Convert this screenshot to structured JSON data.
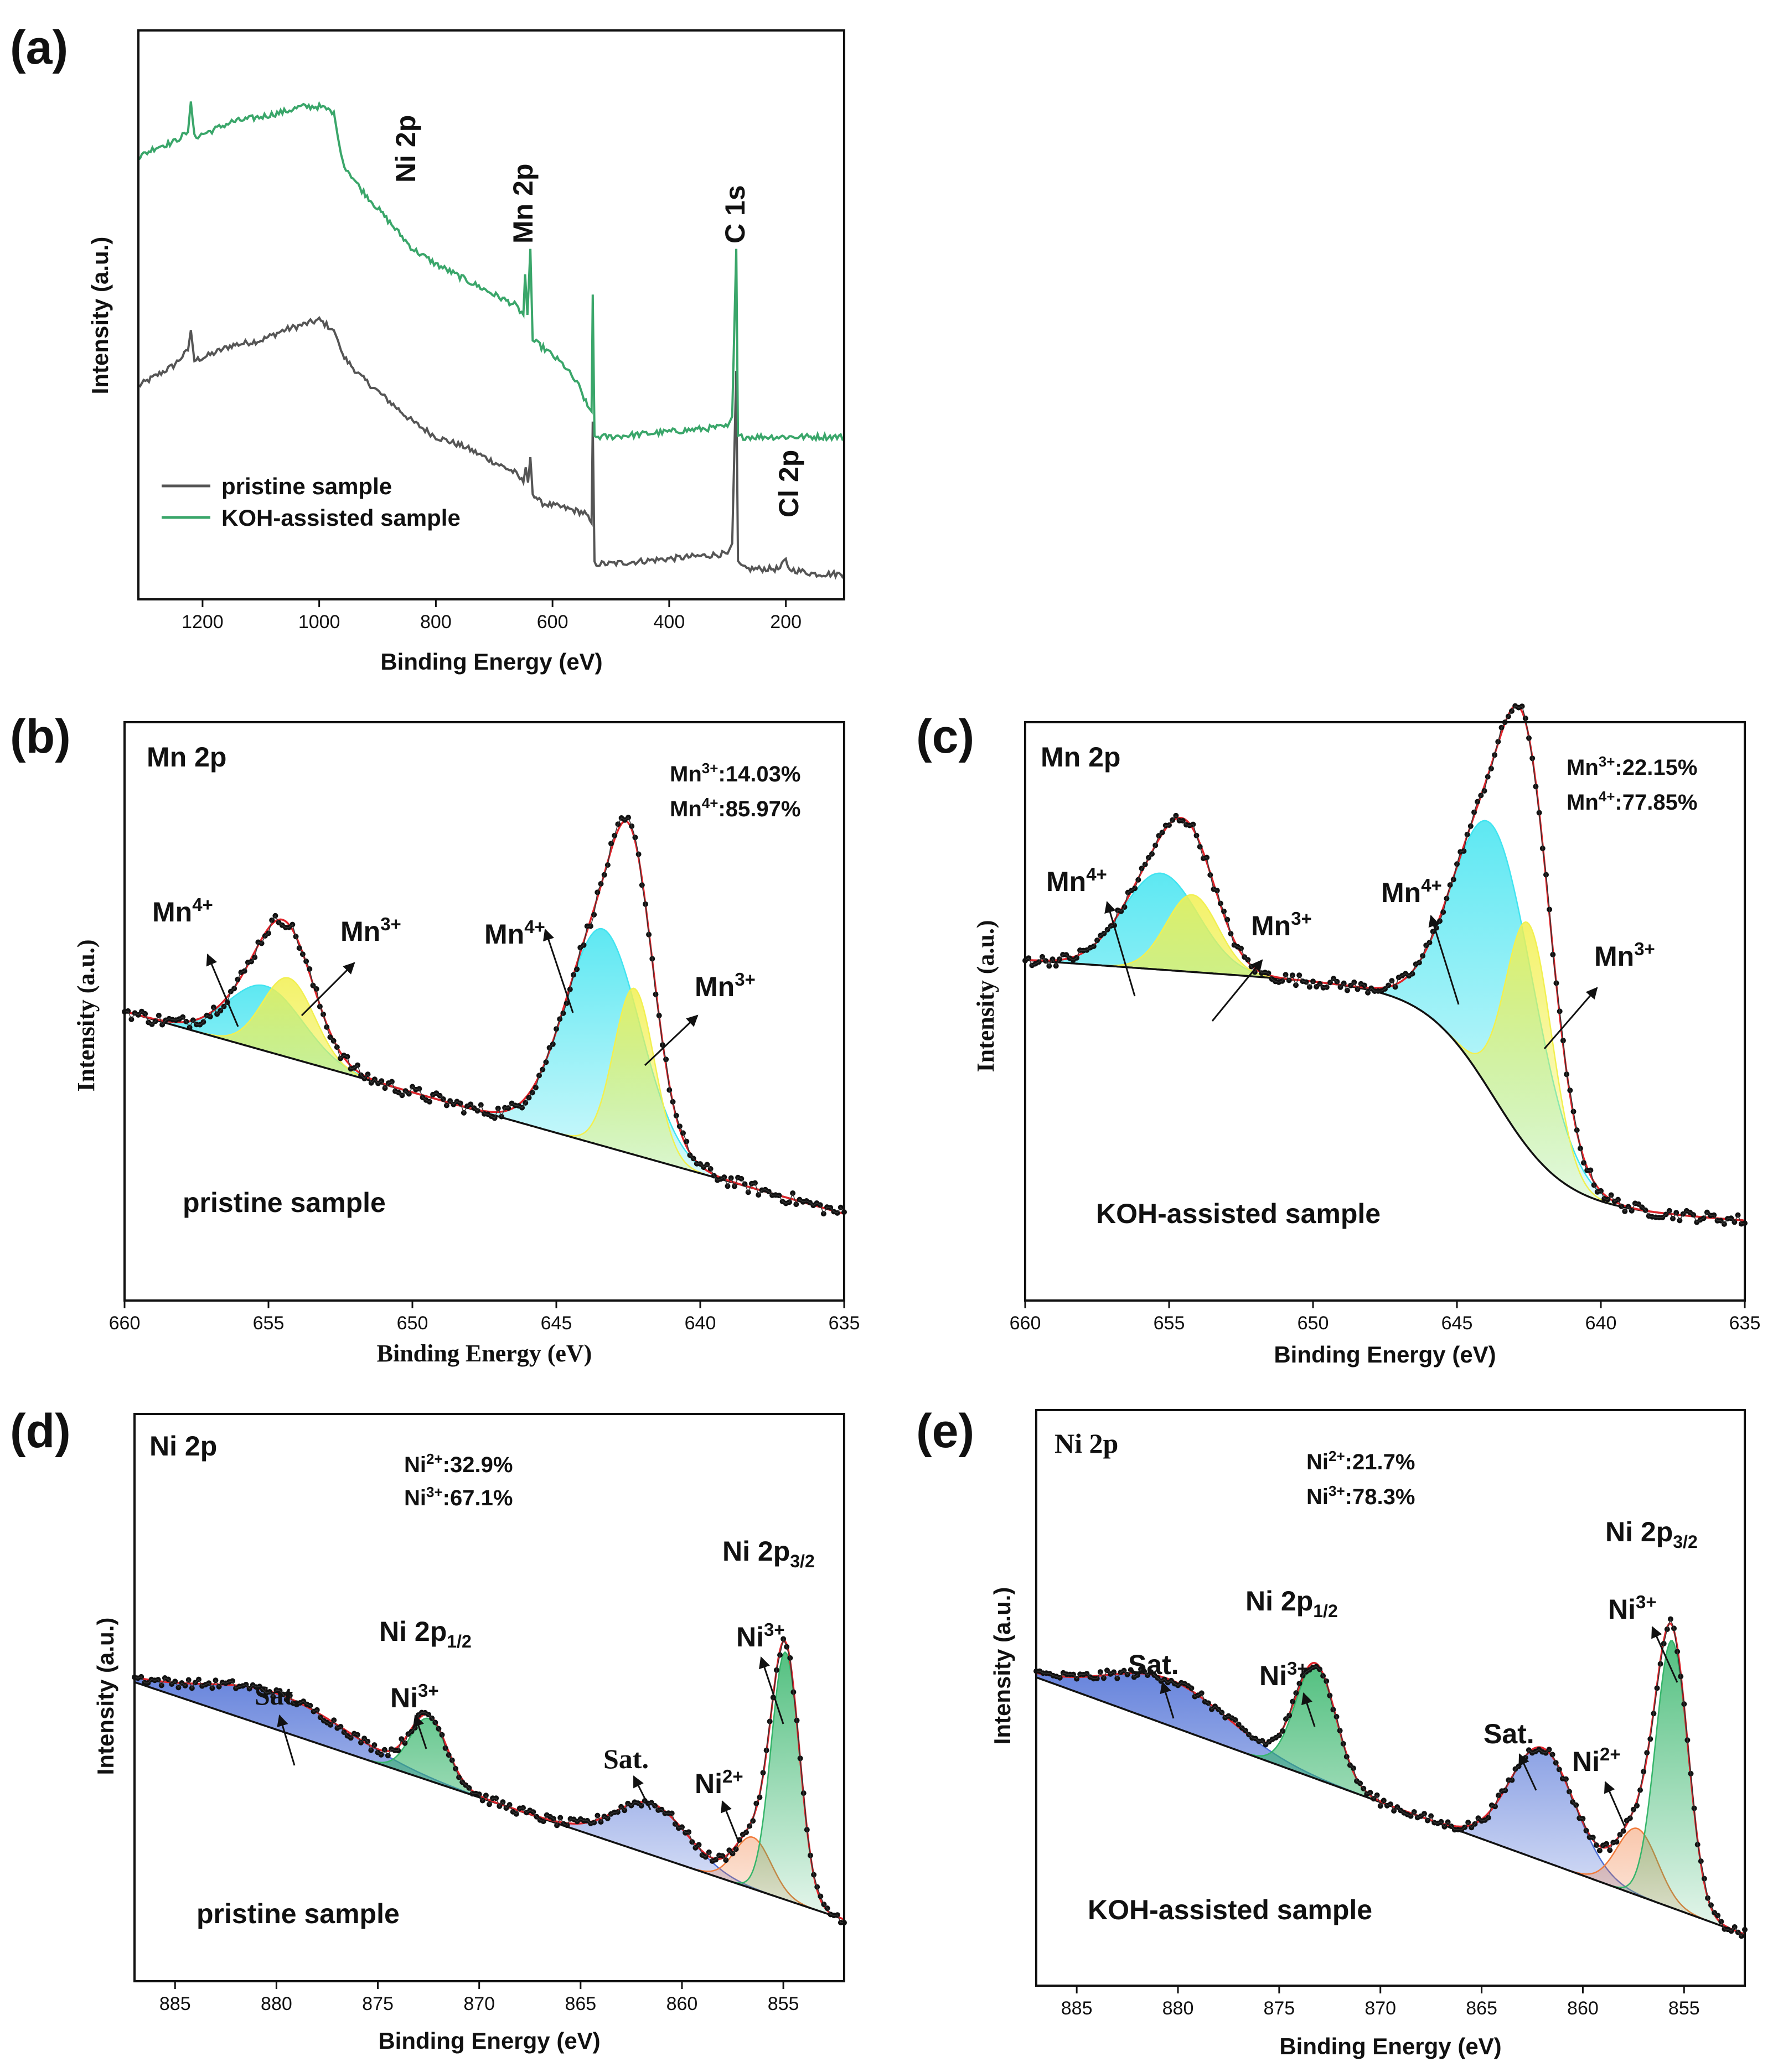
{
  "chart_data": [
    {
      "id": "a",
      "type": "line",
      "panel_label": "(a)",
      "xlabel": "Binding Energy (eV)",
      "ylabel": "Intensity (a.u.)",
      "xlim": [
        1310,
        100
      ],
      "xticks": [
        1200,
        1000,
        800,
        600,
        400,
        200
      ],
      "legend": {
        "placement": "bottom-left",
        "entries": [
          "pristine sample",
          "KOH-assisted sample"
        ]
      },
      "colors": {
        "pristine": "#555555",
        "koh": "#3aa66a"
      },
      "peak_labels": [
        "Ni 2p",
        "Mn 2p",
        "C 1s",
        "Cl 2p"
      ],
      "series": [
        {
          "name": "pristine sample",
          "points": [
            [
              1310,
              0.3
            ],
            [
              1280,
              0.32
            ],
            [
              1250,
              0.34
            ],
            [
              1225,
              0.37
            ],
            [
              1220,
              0.41
            ],
            [
              1214,
              0.35
            ],
            [
              1190,
              0.36
            ],
            [
              1150,
              0.38
            ],
            [
              1100,
              0.39
            ],
            [
              1060,
              0.41
            ],
            [
              1030,
              0.42
            ],
            [
              1000,
              0.43
            ],
            [
              975,
              0.41
            ],
            [
              968,
              0.39
            ],
            [
              960,
              0.36
            ],
            [
              930,
              0.32
            ],
            [
              900,
              0.29
            ],
            [
              870,
              0.26
            ],
            [
              840,
              0.23
            ],
            [
              800,
              0.2
            ],
            [
              750,
              0.18
            ],
            [
              700,
              0.15
            ],
            [
              665,
              0.13
            ],
            [
              650,
              0.11
            ],
            [
              646,
              0.14
            ],
            [
              642,
              0.11
            ],
            [
              638,
              0.16
            ],
            [
              634,
              0.09
            ],
            [
              620,
              0.07
            ],
            [
              580,
              0.06
            ],
            [
              545,
              0.05
            ],
            [
              533,
              0.03
            ],
            [
              531,
              0.23
            ],
            [
              528,
              -0.05
            ],
            [
              500,
              -0.05
            ],
            [
              400,
              -0.04
            ],
            [
              300,
              -0.03
            ],
            [
              292,
              -0.01
            ],
            [
              285,
              0.33
            ],
            [
              282,
              -0.05
            ],
            [
              270,
              -0.06
            ],
            [
              210,
              -0.06
            ],
            [
              200,
              -0.04
            ],
            [
              196,
              -0.06
            ],
            [
              150,
              -0.07
            ],
            [
              100,
              -0.07
            ]
          ]
        },
        {
          "name": "KOH-assisted sample",
          "points": [
            [
              1310,
              0.75
            ],
            [
              1280,
              0.77
            ],
            [
              1250,
              0.78
            ],
            [
              1225,
              0.8
            ],
            [
              1220,
              0.86
            ],
            [
              1214,
              0.79
            ],
            [
              1190,
              0.8
            ],
            [
              1150,
              0.82
            ],
            [
              1100,
              0.83
            ],
            [
              1060,
              0.84
            ],
            [
              1030,
              0.85
            ],
            [
              1000,
              0.85
            ],
            [
              975,
              0.84
            ],
            [
              968,
              0.79
            ],
            [
              960,
              0.74
            ],
            [
              930,
              0.69
            ],
            [
              900,
              0.65
            ],
            [
              870,
              0.61
            ],
            [
              840,
              0.57
            ],
            [
              800,
              0.54
            ],
            [
              750,
              0.51
            ],
            [
              700,
              0.48
            ],
            [
              665,
              0.46
            ],
            [
              650,
              0.44
            ],
            [
              647,
              0.52
            ],
            [
              643,
              0.44
            ],
            [
              638,
              0.57
            ],
            [
              634,
              0.39
            ],
            [
              610,
              0.37
            ],
            [
              580,
              0.34
            ],
            [
              555,
              0.3
            ],
            [
              540,
              0.26
            ],
            [
              533,
              0.25
            ],
            [
              531,
              0.48
            ],
            [
              528,
              0.2
            ],
            [
              500,
              0.2
            ],
            [
              400,
              0.21
            ],
            [
              300,
              0.22
            ],
            [
              292,
              0.24
            ],
            [
              285,
              0.57
            ],
            [
              282,
              0.2
            ],
            [
              270,
              0.2
            ],
            [
              200,
              0.2
            ],
            [
              100,
              0.2
            ]
          ]
        }
      ]
    },
    {
      "id": "b",
      "type": "line",
      "panel_label": "(b)",
      "title": "Mn 2p",
      "xlabel": "Binding Energy (eV)",
      "ylabel": "Intensity (a.u.)",
      "xlim": [
        660,
        635
      ],
      "xticks": [
        660,
        655,
        650,
        645,
        640,
        635
      ],
      "sample": "pristine sample",
      "annotation_lines": [
        "Mn³⁺:14.03%",
        "Mn⁴⁺:85.97%"
      ],
      "peak_labels": [
        "Mn⁴⁺",
        "Mn³⁺",
        "Mn⁴⁺",
        "Mn³⁺"
      ],
      "background": {
        "type": "linear",
        "start": 0.4,
        "end": 0.12
      },
      "components": [
        {
          "name": "Mn⁴⁺",
          "center": 655.1,
          "amp": 0.09,
          "sigma": 1.3,
          "color": "#41e4f0"
        },
        {
          "name": "Mn³⁺",
          "center": 654.3,
          "amp": 0.11,
          "sigma": 0.9,
          "color": "#f2f050"
        },
        {
          "name": "Mn⁴⁺",
          "center": 643.4,
          "amp": 0.3,
          "sigma": 1.3,
          "color": "#41e4f0"
        },
        {
          "name": "Mn³⁺",
          "center": 642.3,
          "amp": 0.23,
          "sigma": 0.7,
          "color": "#f2f050"
        }
      ]
    },
    {
      "id": "c",
      "type": "line",
      "panel_label": "(c)",
      "title": "Mn 2p",
      "xlabel": "Binding Energy (eV)",
      "ylabel": "Intensity (a.u.)",
      "xlim": [
        660,
        635
      ],
      "xticks": [
        660,
        655,
        650,
        645,
        640,
        635
      ],
      "sample": "KOH-assisted sample",
      "annotation_lines": [
        "Mn³⁺:22.15%",
        "Mn⁴⁺:77.85%"
      ],
      "peak_labels": [
        "Mn⁴⁺",
        "Mn³⁺",
        "Mn⁴⁺",
        "Mn³⁺"
      ],
      "background": {
        "type": "shirley",
        "start": 0.53,
        "end": 0.1
      },
      "components": [
        {
          "name": "Mn⁴⁺",
          "center": 655.3,
          "amp": 0.15,
          "sigma": 1.3,
          "color": "#41e4f0"
        },
        {
          "name": "Mn³⁺",
          "center": 654.2,
          "amp": 0.12,
          "sigma": 0.9,
          "color": "#f2f050"
        },
        {
          "name": "Mn⁴⁺",
          "center": 643.7,
          "amp": 0.42,
          "sigma": 1.4,
          "color": "#41e4f0"
        },
        {
          "name": "Mn³⁺",
          "center": 642.5,
          "amp": 0.35,
          "sigma": 0.8,
          "color": "#f2f050"
        }
      ]
    },
    {
      "id": "d",
      "type": "line",
      "panel_label": "(d)",
      "title": "Ni 2p",
      "xlabel": "Binding Energy (eV)",
      "ylabel": "Intensity (a.u.)",
      "xlim": [
        887,
        852
      ],
      "xticks": [
        885,
        880,
        875,
        870,
        865,
        860,
        855
      ],
      "sample": "pristine sample",
      "annotation_lines": [
        "Ni²⁺:32.9%",
        "Ni³⁺:67.1%"
      ],
      "region_labels": [
        "Ni 2p1/2",
        "Ni 2p3/2"
      ],
      "peak_labels": [
        "Sat.",
        "Ni³⁺",
        "Sat.",
        "Ni²⁺",
        "Ni³⁺"
      ],
      "background": {
        "type": "linear",
        "start": 0.58,
        "end": 0.12
      },
      "components": [
        {
          "name": "Sat.",
          "center": 880.0,
          "amp": 0.07,
          "sigma": 3.5,
          "color": "#4d6fd6"
        },
        {
          "name": "Ni³⁺",
          "center": 872.5,
          "amp": 0.12,
          "sigma": 0.9,
          "color": "#35b56a"
        },
        {
          "name": "Sat.",
          "center": 861.5,
          "amp": 0.1,
          "sigma": 1.8,
          "color": "#4d6fd6"
        },
        {
          "name": "Ni²⁺",
          "center": 856.5,
          "amp": 0.1,
          "sigma": 0.9,
          "color": "#f07a3a"
        },
        {
          "name": "Ni³⁺",
          "center": 854.9,
          "amp": 0.48,
          "sigma": 0.7,
          "color": "#35b56a"
        }
      ]
    },
    {
      "id": "e",
      "type": "line",
      "panel_label": "(e)",
      "title": "Ni 2p",
      "xlabel": "Binding Energy (eV)",
      "ylabel": "Intensity (a.u.)",
      "xlim": [
        887,
        852
      ],
      "xticks": [
        885,
        880,
        875,
        870,
        865,
        860,
        855
      ],
      "sample": "KOH-assisted sample",
      "annotation_lines": [
        "Ni²⁺:21.7%",
        "Ni³⁺:78.3%"
      ],
      "region_labels": [
        "Ni 2p1/2",
        "Ni 2p3/2"
      ],
      "peak_labels": [
        "Sat.",
        "Ni³⁺",
        "Sat.",
        "Ni²⁺",
        "Ni³⁺"
      ],
      "background": {
        "type": "linear",
        "start": 0.6,
        "end": 0.1
      },
      "components": [
        {
          "name": "Sat.",
          "center": 880.5,
          "amp": 0.09,
          "sigma": 3.0,
          "color": "#4d6fd6"
        },
        {
          "name": "Ni³⁺",
          "center": 873.2,
          "amp": 0.22,
          "sigma": 1.0,
          "color": "#35b56a"
        },
        {
          "name": "Sat.",
          "center": 862.0,
          "amp": 0.22,
          "sigma": 1.6,
          "color": "#4d6fd6"
        },
        {
          "name": "Ni²⁺",
          "center": 857.3,
          "amp": 0.13,
          "sigma": 1.0,
          "color": "#f07a3a"
        },
        {
          "name": "Ni³⁺",
          "center": 855.6,
          "amp": 0.52,
          "sigma": 0.8,
          "color": "#35b56a"
        }
      ]
    }
  ]
}
